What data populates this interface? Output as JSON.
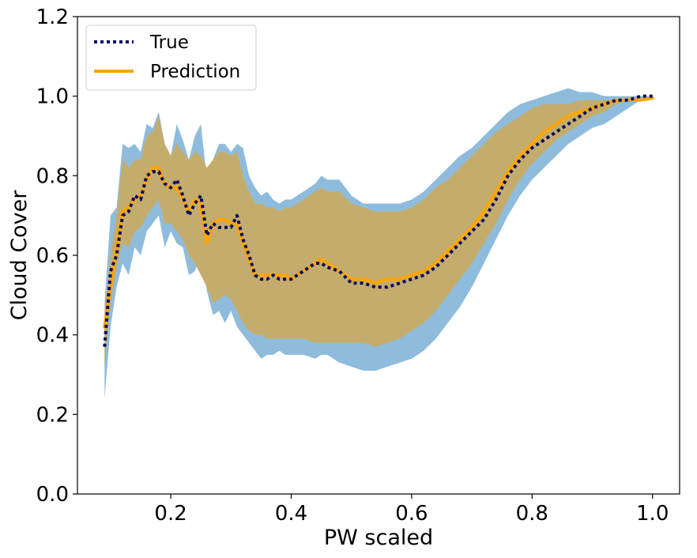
{
  "chart_data": {
    "type": "line",
    "title": "",
    "xlabel": "PW scaled",
    "ylabel": "Cloud Cover",
    "xlim": [
      0.045,
      1.045
    ],
    "ylim": [
      0.0,
      1.2
    ],
    "xticks": [
      0.2,
      0.4,
      0.6,
      0.8,
      1.0
    ],
    "xtick_labels": [
      "0.2",
      "0.4",
      "0.6",
      "0.8",
      "1.0"
    ],
    "yticks": [
      0.0,
      0.2,
      0.4,
      0.6,
      0.8,
      1.0,
      1.2
    ],
    "ytick_labels": [
      "0.0",
      "0.2",
      "0.4",
      "0.6",
      "0.8",
      "1.0",
      "1.2"
    ],
    "grid": false,
    "legend_position": "top-left",
    "x": [
      0.09,
      0.1,
      0.11,
      0.12,
      0.13,
      0.14,
      0.15,
      0.16,
      0.17,
      0.18,
      0.19,
      0.2,
      0.21,
      0.22,
      0.23,
      0.24,
      0.25,
      0.26,
      0.27,
      0.28,
      0.29,
      0.3,
      0.31,
      0.32,
      0.33,
      0.34,
      0.35,
      0.36,
      0.37,
      0.38,
      0.39,
      0.4,
      0.42,
      0.44,
      0.45,
      0.46,
      0.48,
      0.5,
      0.52,
      0.54,
      0.56,
      0.58,
      0.6,
      0.62,
      0.64,
      0.66,
      0.68,
      0.7,
      0.72,
      0.74,
      0.76,
      0.78,
      0.8,
      0.82,
      0.84,
      0.86,
      0.88,
      0.9,
      0.92,
      0.94,
      0.96,
      0.98,
      1.0
    ],
    "series": [
      {
        "name": "True",
        "color": "#0a0a5e",
        "style": "dotted",
        "values": [
          0.37,
          0.56,
          0.6,
          0.7,
          0.71,
          0.75,
          0.74,
          0.8,
          0.81,
          0.81,
          0.78,
          0.77,
          0.79,
          0.75,
          0.7,
          0.73,
          0.75,
          0.65,
          0.68,
          0.67,
          0.67,
          0.67,
          0.7,
          0.64,
          0.6,
          0.55,
          0.54,
          0.54,
          0.55,
          0.54,
          0.54,
          0.54,
          0.56,
          0.58,
          0.58,
          0.57,
          0.56,
          0.53,
          0.53,
          0.52,
          0.52,
          0.53,
          0.54,
          0.55,
          0.57,
          0.6,
          0.63,
          0.66,
          0.69,
          0.74,
          0.8,
          0.84,
          0.87,
          0.89,
          0.91,
          0.93,
          0.95,
          0.97,
          0.98,
          0.99,
          0.99,
          1.0,
          1.0
        ]
      },
      {
        "name": "Prediction",
        "color": "#ffa500",
        "style": "solid",
        "values": [
          0.42,
          0.52,
          0.62,
          0.71,
          0.72,
          0.74,
          0.75,
          0.79,
          0.82,
          0.82,
          0.78,
          0.77,
          0.77,
          0.74,
          0.71,
          0.74,
          0.73,
          0.63,
          0.68,
          0.69,
          0.69,
          0.68,
          0.68,
          0.63,
          0.59,
          0.55,
          0.55,
          0.55,
          0.55,
          0.55,
          0.55,
          0.54,
          0.56,
          0.58,
          0.59,
          0.58,
          0.56,
          0.54,
          0.54,
          0.53,
          0.54,
          0.54,
          0.55,
          0.56,
          0.58,
          0.61,
          0.64,
          0.67,
          0.71,
          0.76,
          0.81,
          0.85,
          0.88,
          0.91,
          0.93,
          0.95,
          0.96,
          0.97,
          0.98,
          0.99,
          0.99,
          0.99,
          0.995
        ]
      }
    ],
    "bands": [
      {
        "color": "#8fbcdc",
        "lower": [
          0.24,
          0.42,
          0.52,
          0.58,
          0.55,
          0.62,
          0.6,
          0.66,
          0.68,
          0.7,
          0.62,
          0.66,
          0.63,
          0.62,
          0.55,
          0.56,
          0.6,
          0.51,
          0.45,
          0.46,
          0.43,
          0.46,
          0.42,
          0.4,
          0.38,
          0.36,
          0.34,
          0.35,
          0.35,
          0.36,
          0.35,
          0.35,
          0.35,
          0.34,
          0.35,
          0.35,
          0.33,
          0.32,
          0.31,
          0.31,
          0.32,
          0.33,
          0.34,
          0.36,
          0.39,
          0.43,
          0.47,
          0.52,
          0.58,
          0.64,
          0.7,
          0.75,
          0.79,
          0.82,
          0.85,
          0.88,
          0.9,
          0.92,
          0.93,
          0.95,
          0.97,
          0.99,
          1.0
        ],
        "upper": [
          0.48,
          0.7,
          0.72,
          0.88,
          0.87,
          0.88,
          0.86,
          0.93,
          0.92,
          0.96,
          0.88,
          0.85,
          0.93,
          0.89,
          0.84,
          0.9,
          0.93,
          0.79,
          0.84,
          0.88,
          0.88,
          0.86,
          0.88,
          0.87,
          0.8,
          0.77,
          0.75,
          0.76,
          0.74,
          0.73,
          0.74,
          0.74,
          0.76,
          0.78,
          0.8,
          0.79,
          0.79,
          0.75,
          0.73,
          0.73,
          0.73,
          0.73,
          0.74,
          0.76,
          0.79,
          0.82,
          0.85,
          0.87,
          0.9,
          0.93,
          0.96,
          0.98,
          0.99,
          1.0,
          1.01,
          1.02,
          1.01,
          1.01,
          1.0,
          1.0,
          1.0,
          1.0,
          1.0
        ]
      },
      {
        "color": "#c4ad6c",
        "lower": [
          0.32,
          0.48,
          0.57,
          0.63,
          0.62,
          0.66,
          0.67,
          0.7,
          0.72,
          0.74,
          0.68,
          0.68,
          0.66,
          0.64,
          0.6,
          0.58,
          0.55,
          0.52,
          0.48,
          0.49,
          0.5,
          0.49,
          0.46,
          0.43,
          0.41,
          0.4,
          0.4,
          0.39,
          0.39,
          0.39,
          0.39,
          0.39,
          0.39,
          0.38,
          0.38,
          0.38,
          0.38,
          0.38,
          0.38,
          0.37,
          0.38,
          0.39,
          0.41,
          0.43,
          0.46,
          0.5,
          0.54,
          0.58,
          0.63,
          0.68,
          0.74,
          0.79,
          0.83,
          0.86,
          0.89,
          0.91,
          0.93,
          0.95,
          0.96,
          0.98,
          0.99,
          0.99,
          1.0
        ],
        "upper": [
          0.46,
          0.6,
          0.7,
          0.84,
          0.82,
          0.84,
          0.84,
          0.9,
          0.91,
          0.95,
          0.88,
          0.85,
          0.88,
          0.86,
          0.84,
          0.86,
          0.85,
          0.82,
          0.84,
          0.86,
          0.86,
          0.85,
          0.86,
          0.8,
          0.76,
          0.73,
          0.73,
          0.72,
          0.72,
          0.71,
          0.72,
          0.72,
          0.74,
          0.76,
          0.77,
          0.76,
          0.76,
          0.73,
          0.72,
          0.71,
          0.71,
          0.71,
          0.72,
          0.74,
          0.77,
          0.79,
          0.82,
          0.85,
          0.88,
          0.91,
          0.93,
          0.95,
          0.97,
          0.98,
          0.98,
          0.98,
          0.99,
          0.99,
          0.99,
          0.99,
          0.99,
          0.99,
          1.0
        ]
      }
    ]
  },
  "legend": {
    "items": [
      {
        "label": "True",
        "color": "#0a0a5e",
        "style": "dotted"
      },
      {
        "label": "Prediction",
        "color": "#ffa500",
        "style": "solid"
      }
    ]
  }
}
